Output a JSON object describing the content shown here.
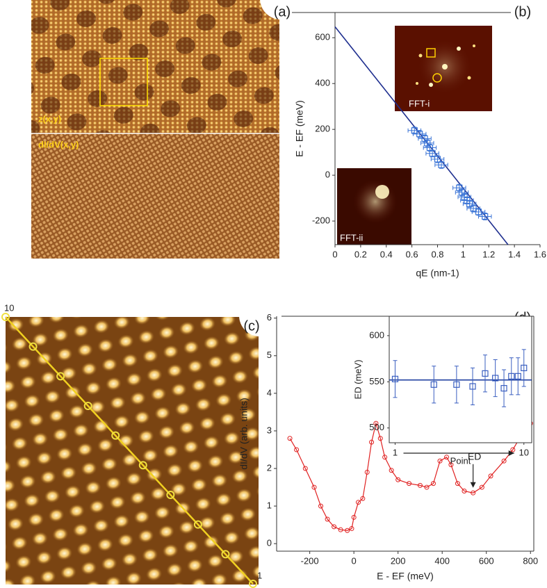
{
  "panels": {
    "a": {
      "label": "(a)",
      "top_label": "z(x,y)",
      "bottom_label": "dI/dV(x,y)"
    },
    "c": {
      "label": "(c)",
      "start_label": "10",
      "end_label": "1"
    }
  },
  "chart_data": [
    {
      "type": "scatter",
      "panel_label": "(b)",
      "xlabel": "qE (nm-1)",
      "ylabel": "E - EF (meV)",
      "xlim": [
        0,
        1.6
      ],
      "ylim": [
        -303,
        710
      ],
      "xticks": [
        0,
        0.2,
        0.4,
        0.6,
        0.8,
        1,
        1.2,
        1.4,
        1.6
      ],
      "yticks": [
        -200,
        0,
        200,
        400,
        600
      ],
      "inset_labels": [
        "FFT-i",
        "FFT-ii"
      ],
      "series": [
        {
          "color": "#1f2f8f",
          "line": true,
          "x": [
            0,
            1.35
          ],
          "values": [
            648,
            -303
          ]
        },
        {
          "color": "#3a74d6",
          "marker": "square",
          "x": [
            0.62,
            0.66,
            0.7,
            0.72,
            0.74,
            0.76,
            0.8,
            0.83,
            0.97,
            0.99,
            1.01,
            1.03,
            1.05,
            1.08,
            1.12,
            1.17
          ],
          "values": [
            195,
            180,
            160,
            140,
            120,
            95,
            70,
            45,
            -55,
            -75,
            -95,
            -110,
            -125,
            -145,
            -160,
            -180
          ],
          "xerr": [
            0.05,
            0.05,
            0.05,
            0.05,
            0.05,
            0.05,
            0.05,
            0.05,
            0.05,
            0.05,
            0.05,
            0.05,
            0.05,
            0.05,
            0.05,
            0.05
          ],
          "yerr": [
            15,
            15,
            15,
            15,
            15,
            15,
            15,
            15,
            15,
            15,
            15,
            15,
            15,
            15,
            15,
            15
          ]
        }
      ]
    },
    {
      "type": "line",
      "panel_label": "(d)",
      "xlabel": "E - EF (meV)",
      "ylabel": "dI/dV (arb. units)",
      "xlim": [
        -350,
        815
      ],
      "ylim": [
        -0.2,
        6.05
      ],
      "xticks": [
        -200,
        0,
        200,
        400,
        600,
        800
      ],
      "yticks": [
        0,
        1,
        2,
        3,
        4,
        5,
        6
      ],
      "series": [
        {
          "color": "#e02020",
          "marker": "circle",
          "x": [
            -290,
            -260,
            -220,
            -180,
            -150,
            -120,
            -90,
            -60,
            -30,
            -10,
            0,
            20,
            40,
            60,
            80,
            100,
            120,
            140,
            170,
            200,
            250,
            300,
            330,
            360,
            390,
            420,
            440,
            470,
            500,
            540,
            580,
            620,
            680,
            720,
            760,
            800
          ],
          "values": [
            2.8,
            2.5,
            2.0,
            1.5,
            1.0,
            0.65,
            0.45,
            0.37,
            0.35,
            0.4,
            0.7,
            1.1,
            1.2,
            1.9,
            2.7,
            3.2,
            2.8,
            2.3,
            1.95,
            1.7,
            1.6,
            1.55,
            1.5,
            1.6,
            2.2,
            2.3,
            2.1,
            1.6,
            1.4,
            1.35,
            1.5,
            1.8,
            2.2,
            2.5,
            2.9,
            3.2
          ]
        }
      ],
      "annotations": [
        {
          "text": "ED",
          "x": 540,
          "y": 1.45
        }
      ]
    },
    {
      "type": "scatter",
      "xlabel": "Point",
      "ylabel": "ED (meV)",
      "xscale": "log",
      "xlim": [
        0.9,
        11.5
      ],
      "ylim": [
        484,
        621
      ],
      "xticks": [
        1,
        10
      ],
      "yticks": [
        500,
        550,
        600
      ],
      "series": [
        {
          "color": "#2040a0",
          "line": true,
          "x": [
            0.9,
            11.5
          ],
          "values": [
            552,
            552
          ]
        },
        {
          "color": "#3a5fc0",
          "marker": "square",
          "x": [
            1,
            2,
            3,
            4,
            5,
            6,
            7,
            8,
            9,
            10
          ],
          "values": [
            553,
            547,
            547,
            545,
            559,
            554,
            543,
            556,
            556,
            565
          ],
          "yerr": [
            20,
            20,
            20,
            20,
            20,
            20,
            20,
            20,
            20,
            20
          ]
        }
      ]
    }
  ]
}
